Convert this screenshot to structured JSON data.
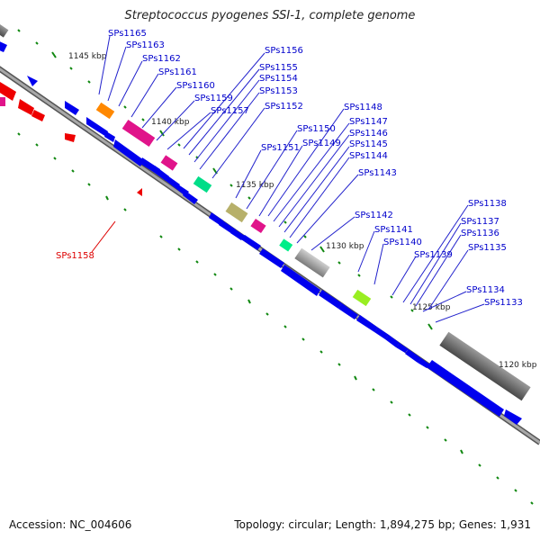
{
  "title": "Streptococcus pyogenes SSI-1, complete genome",
  "footer": {
    "accession": "Accession: NC_004606",
    "summary": "Topology: circular; Length: 1,894,275 bp; Genes: 1,931"
  },
  "colors": {
    "backbone": "#8a8a8a",
    "cds": "#0000ee",
    "tick": "#118811",
    "label": "#0000cc",
    "highlight": "#dd0000",
    "leader": "#2222cc"
  },
  "scale_labels": [
    "1145 kbp",
    "1140 kbp",
    "1135 kbp",
    "1130 kbp",
    "1125 kbp",
    "1120 kbp"
  ],
  "gene_labels": [
    "SPs1165",
    "SPs1163",
    "SPs1162",
    "SPs1161",
    "SPs1160",
    "SPs1159",
    "SPs1157",
    "SPs1156",
    "SPs1155",
    "SPs1154",
    "SPs1153",
    "SPs1152",
    "SPs1151",
    "SPs1150",
    "SPs1149",
    "SPs1148",
    "SPs1147",
    "SPs1146",
    "SPs1145",
    "SPs1144",
    "SPs1143",
    "SPs1142",
    "SPs1141",
    "SPs1140",
    "SPs1139",
    "SPs1138",
    "SPs1137",
    "SPs1136",
    "SPs1135",
    "SPs1134",
    "SPs1133"
  ],
  "highlight_label": "SPs1158"
}
